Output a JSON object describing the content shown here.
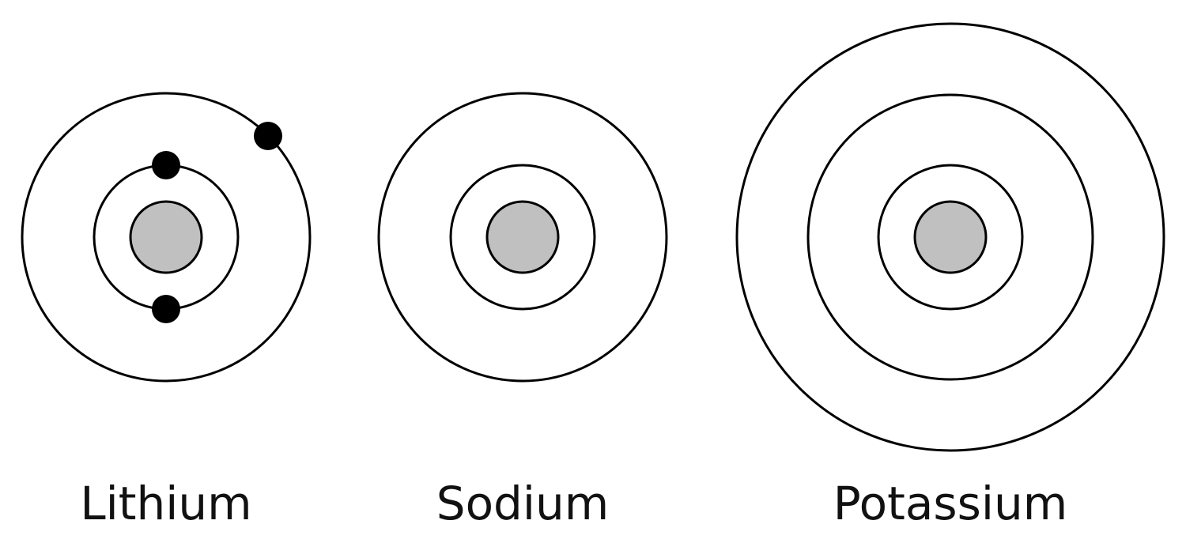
{
  "diagram": {
    "atoms": [
      {
        "name": "Lithium",
        "shells": 2,
        "electrons_drawn": [
          2,
          1
        ]
      },
      {
        "name": "Sodium",
        "shells": 2,
        "electrons_drawn": [
          0,
          0
        ]
      },
      {
        "name": "Potassium",
        "shells": 3,
        "electrons_drawn": [
          0,
          0,
          0
        ]
      }
    ]
  },
  "colors": {
    "nucleus": "#c0c0c0",
    "outline": "#000000",
    "electron": "#000000",
    "background": "#ffffff"
  }
}
